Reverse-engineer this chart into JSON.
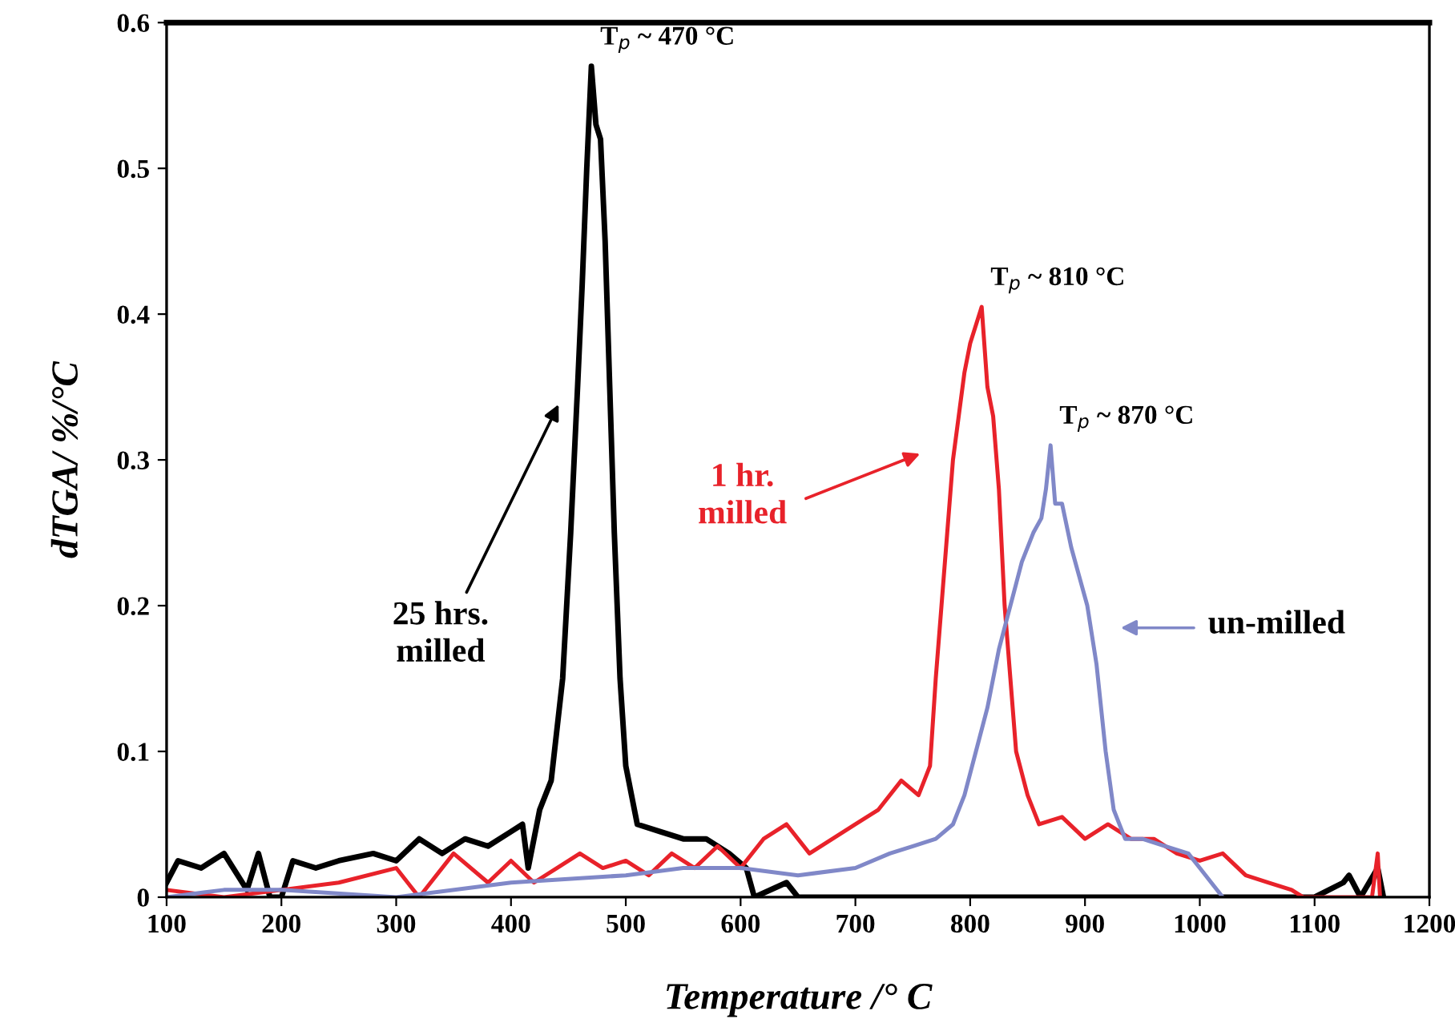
{
  "chart_data": {
    "type": "line",
    "xlabel": "Temperature /° C",
    "ylabel": "dTGA/ %/°C",
    "xlim": [
      100,
      1200
    ],
    "xticks": [
      100,
      200,
      300,
      400,
      500,
      600,
      700,
      800,
      900,
      1000,
      1100,
      1200
    ],
    "ylim": [
      0,
      0.6
    ],
    "yticks": [
      0,
      0.1,
      0.2,
      0.3,
      0.4,
      0.5,
      0.6
    ],
    "grid": false,
    "legend": false,
    "marker": "none",
    "line_style": "solid",
    "annotations": [
      {
        "text": "T$_{p}$ ~ 470 °C",
        "x": 470,
        "y": 0.57
      },
      {
        "text": "T$_{p}$ ~ 810 °C",
        "x": 810,
        "y": 0.405
      },
      {
        "text": "T$_{p}$ ~ 870 °C",
        "x": 870,
        "y": 0.31
      },
      "25 hrs.\nmilled",
      "1 hr.\nmilled",
      "un-milled"
    ],
    "series": [
      {
        "color": "#000000",
        "x": [
          100,
          110,
          130,
          150,
          170,
          180,
          190,
          200,
          210,
          230,
          250,
          280,
          300,
          320,
          340,
          360,
          380,
          400,
          410,
          415,
          425,
          435,
          445,
          452,
          458,
          462,
          466,
          470,
          474,
          478,
          482,
          486,
          490,
          495,
          500,
          505,
          510,
          530,
          550,
          570,
          590,
          605,
          612,
          640,
          650,
          700,
          800,
          900,
          1000,
          1100,
          1125,
          1130,
          1140,
          1155,
          1160
        ],
        "values": [
          0.01,
          0.025,
          0.02,
          0.03,
          0.005,
          0.03,
          0.0,
          0.0,
          0.025,
          0.02,
          0.025,
          0.03,
          0.025,
          0.04,
          0.03,
          0.04,
          0.035,
          0.045,
          0.05,
          0.02,
          0.06,
          0.08,
          0.15,
          0.25,
          0.35,
          0.42,
          0.5,
          0.57,
          0.53,
          0.52,
          0.45,
          0.35,
          0.25,
          0.15,
          0.09,
          0.07,
          0.05,
          0.045,
          0.04,
          0.04,
          0.03,
          0.02,
          0.0,
          0.01,
          0.0,
          0.0,
          0.0,
          0.0,
          0.0,
          0.0,
          0.01,
          0.015,
          0.0,
          0.02,
          0.0
        ]
      },
      {
        "color": "#e8222a",
        "x": [
          100,
          150,
          200,
          250,
          300,
          320,
          350,
          380,
          400,
          420,
          440,
          460,
          480,
          500,
          520,
          540,
          560,
          580,
          600,
          620,
          640,
          660,
          680,
          700,
          720,
          740,
          755,
          765,
          770,
          775,
          780,
          785,
          795,
          800,
          810,
          815,
          820,
          825,
          830,
          835,
          840,
          850,
          860,
          880,
          900,
          920,
          940,
          960,
          980,
          1000,
          1020,
          1040,
          1060,
          1080,
          1090,
          1150,
          1155,
          1157
        ],
        "values": [
          0.005,
          0.0,
          0.005,
          0.01,
          0.02,
          0.0,
          0.03,
          0.01,
          0.025,
          0.01,
          0.02,
          0.03,
          0.02,
          0.025,
          0.015,
          0.03,
          0.02,
          0.035,
          0.02,
          0.04,
          0.05,
          0.03,
          0.04,
          0.05,
          0.06,
          0.08,
          0.07,
          0.09,
          0.15,
          0.2,
          0.25,
          0.3,
          0.36,
          0.38,
          0.405,
          0.35,
          0.33,
          0.28,
          0.2,
          0.15,
          0.1,
          0.07,
          0.05,
          0.055,
          0.04,
          0.05,
          0.04,
          0.04,
          0.03,
          0.025,
          0.03,
          0.015,
          0.01,
          0.005,
          0.0,
          0.0,
          0.03,
          0.0
        ]
      },
      {
        "color": "#8088c8",
        "x": [
          100,
          150,
          200,
          300,
          400,
          500,
          550,
          600,
          650,
          700,
          730,
          750,
          770,
          785,
          795,
          805,
          815,
          825,
          835,
          845,
          855,
          862,
          866,
          870,
          874,
          880,
          888,
          895,
          902,
          910,
          918,
          925,
          935,
          950,
          970,
          990,
          1000,
          1010,
          1020
        ],
        "values": [
          0.0,
          0.005,
          0.005,
          0.0,
          0.01,
          0.015,
          0.02,
          0.02,
          0.015,
          0.02,
          0.03,
          0.035,
          0.04,
          0.05,
          0.07,
          0.1,
          0.13,
          0.17,
          0.2,
          0.23,
          0.25,
          0.26,
          0.28,
          0.31,
          0.27,
          0.27,
          0.24,
          0.22,
          0.2,
          0.16,
          0.1,
          0.06,
          0.04,
          0.04,
          0.035,
          0.03,
          0.02,
          0.01,
          0.0
        ]
      }
    ]
  }
}
